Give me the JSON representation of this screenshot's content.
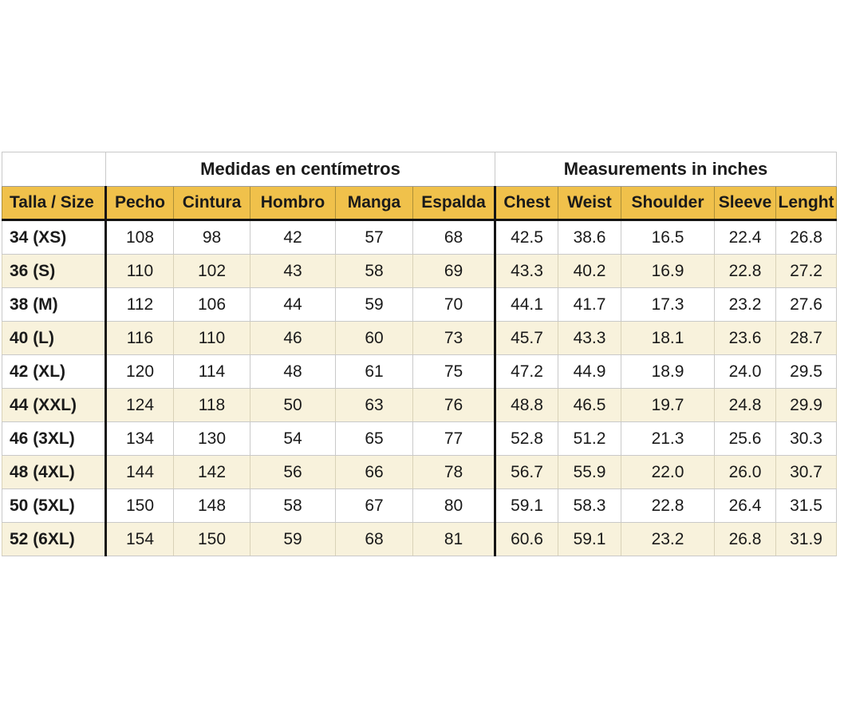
{
  "chart_data": {
    "type": "table",
    "group_headers": [
      {
        "label": "Medidas en centímetros",
        "colspan": 5
      },
      {
        "label": "Measurements in inches",
        "colspan": 5
      }
    ],
    "columns": [
      "Talla / Size",
      "Pecho",
      "Cintura",
      "Hombro",
      "Manga",
      "Espalda",
      "Chest",
      "Weist",
      "Shoulder",
      "Sleeve",
      "Lenght"
    ],
    "rows": [
      [
        "34 (XS)",
        "108",
        "98",
        "42",
        "57",
        "68",
        "42.5",
        "38.6",
        "16.5",
        "22.4",
        "26.8"
      ],
      [
        "36 (S)",
        "110",
        "102",
        "43",
        "58",
        "69",
        "43.3",
        "40.2",
        "16.9",
        "22.8",
        "27.2"
      ],
      [
        "38 (M)",
        "112",
        "106",
        "44",
        "59",
        "70",
        "44.1",
        "41.7",
        "17.3",
        "23.2",
        "27.6"
      ],
      [
        "40 (L)",
        "116",
        "110",
        "46",
        "60",
        "73",
        "45.7",
        "43.3",
        "18.1",
        "23.6",
        "28.7"
      ],
      [
        "42 (XL)",
        "120",
        "114",
        "48",
        "61",
        "75",
        "47.2",
        "44.9",
        "18.9",
        "24.0",
        "29.5"
      ],
      [
        "44 (XXL)",
        "124",
        "118",
        "50",
        "63",
        "76",
        "48.8",
        "46.5",
        "19.7",
        "24.8",
        "29.9"
      ],
      [
        "46 (3XL)",
        "134",
        "130",
        "54",
        "65",
        "77",
        "52.8",
        "51.2",
        "21.3",
        "25.6",
        "30.3"
      ],
      [
        "48 (4XL)",
        "144",
        "142",
        "56",
        "66",
        "78",
        "56.7",
        "55.9",
        "22.0",
        "26.0",
        "30.7"
      ],
      [
        "50 (5XL)",
        "150",
        "148",
        "58",
        "67",
        "80",
        "59.1",
        "58.3",
        "22.8",
        "26.4",
        "31.5"
      ],
      [
        "52 (6XL)",
        "154",
        "150",
        "59",
        "68",
        "81",
        "60.6",
        "59.1",
        "23.2",
        "26.8",
        "31.9"
      ]
    ]
  },
  "colors": {
    "header_fill": "#F0C14B",
    "alt_row_fill": "#F8F2DC",
    "grid_line": "#C9C9C9",
    "heavy_line": "#151515",
    "text": "#1A1A1A",
    "background": "#FFFFFF"
  }
}
